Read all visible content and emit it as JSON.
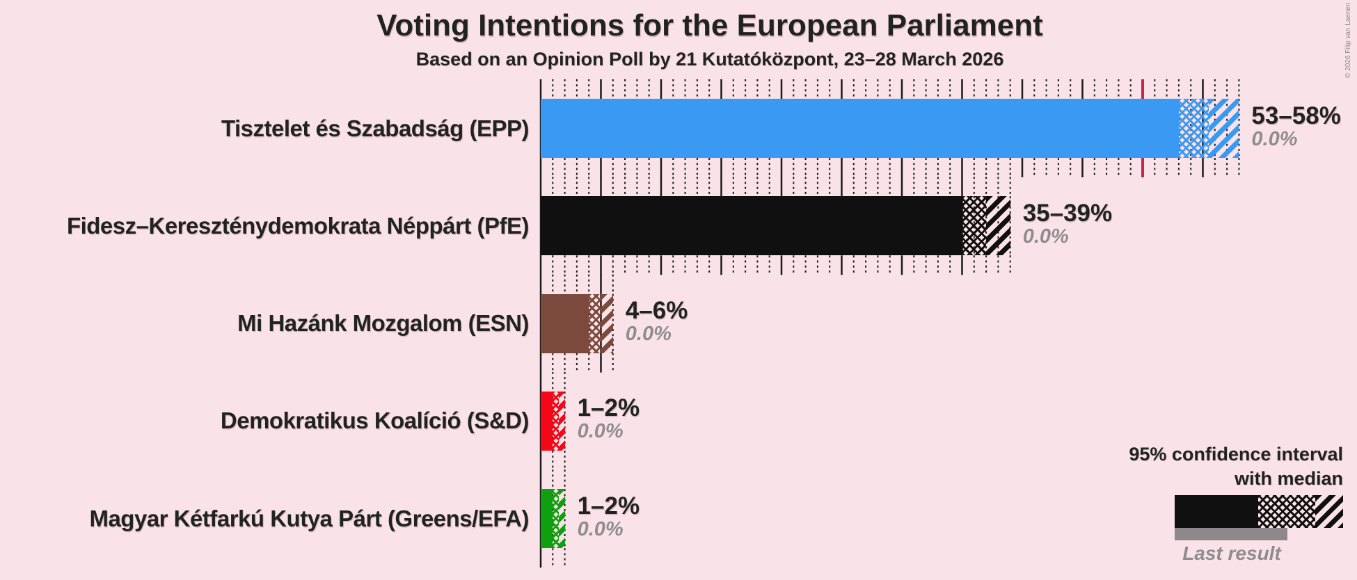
{
  "title": "Voting Intentions for the European Parliament",
  "subtitle": "Based on an Opinion Poll by 21 Kutatóközpont, 23–28 March 2026",
  "copyright": "© 2026 Filip van Laenen",
  "legend": {
    "line1": "95% confidence interval",
    "line2": "with median",
    "last_result_label": "Last result"
  },
  "colors": {
    "background": "#fae3e8",
    "text": "#1f2420",
    "muted_text": "#8f8c8f",
    "last_result_bar": "#8e888b",
    "tick": "#1a1a1a"
  },
  "chart_data": {
    "type": "bar",
    "orientation": "horizontal",
    "unit": "%",
    "xlim": [
      0,
      60
    ],
    "tick_minor": 1,
    "tick_major": 5,
    "grid": "dotted 1% ticks, solid 5% ticks above and below each bar",
    "legend_position": "bottom-right",
    "majority_line": {
      "value": 50,
      "color": "#c2294b"
    },
    "parties": [
      {
        "name": "Tisztelet és Szabadság (EPP)",
        "color": "#3a99f2",
        "ci_low": 53,
        "median": 55.5,
        "ci_high": 58,
        "label": "53–58%",
        "last_result": "0.0%",
        "last_result_value": 0
      },
      {
        "name": "Fidesz–Kereszténydemokrata Néppárt (PfE)",
        "color": "#101010",
        "ci_low": 35,
        "median": 37,
        "ci_high": 39,
        "label": "35–39%",
        "last_result": "0.0%",
        "last_result_value": 0
      },
      {
        "name": "Mi Hazánk Mozgalom (ESN)",
        "color": "#7b4a3d",
        "ci_low": 4,
        "median": 5,
        "ci_high": 6,
        "label": "4–6%",
        "last_result": "0.0%",
        "last_result_value": 0
      },
      {
        "name": "Demokratikus Koalíció (S&D)",
        "color": "#f50717",
        "ci_low": 1,
        "median": 1.5,
        "ci_high": 2,
        "label": "1–2%",
        "last_result": "0.0%",
        "last_result_value": 0
      },
      {
        "name": "Magyar Kétfarkú Kutya Párt (Greens/EFA)",
        "color": "#0fa00f",
        "ci_low": 1,
        "median": 1.5,
        "ci_high": 2,
        "label": "1–2%",
        "last_result": "0.0%",
        "last_result_value": 0
      }
    ]
  }
}
